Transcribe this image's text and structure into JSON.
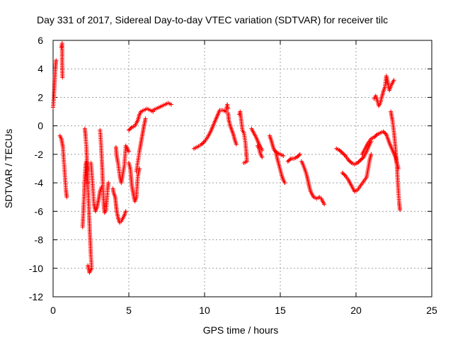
{
  "chart_data": {
    "type": "scatter",
    "title": "Day 331 of 2017, Sidereal Day-to-day VTEC variation (SDTVAR) for receiver tilc",
    "xlabel": "GPS time / hours",
    "ylabel": "SDTVAR / TECUs",
    "xlim": [
      0,
      25
    ],
    "ylim": [
      -12,
      6
    ],
    "xticks": [
      0,
      5,
      10,
      15,
      20,
      25
    ],
    "yticks": [
      -12,
      -10,
      -8,
      -6,
      -4,
      -2,
      0,
      2,
      4,
      6
    ],
    "grid": true,
    "marker": "+",
    "color": "#ff0000",
    "segments": [
      [
        [
          0.0,
          1.3
        ],
        [
          0.05,
          2.0
        ],
        [
          0.1,
          3.0
        ],
        [
          0.15,
          4.0
        ],
        [
          0.2,
          4.6
        ]
      ],
      [
        [
          0.55,
          5.5
        ],
        [
          0.6,
          5.8
        ],
        [
          0.6,
          4.4
        ],
        [
          0.62,
          3.4
        ]
      ],
      [
        [
          0.45,
          -0.7
        ],
        [
          0.55,
          -0.9
        ],
        [
          0.65,
          -1.5
        ],
        [
          0.7,
          -2.3
        ],
        [
          0.75,
          -3.0
        ],
        [
          0.8,
          -3.8
        ],
        [
          0.85,
          -4.5
        ],
        [
          0.9,
          -5.0
        ]
      ],
      [
        [
          1.95,
          -7.1
        ],
        [
          2.0,
          -6.0
        ],
        [
          2.05,
          -4.8
        ],
        [
          2.1,
          -3.5
        ],
        [
          2.15,
          -2.7
        ],
        [
          2.2,
          -2.5
        ],
        [
          2.25,
          -3.2
        ],
        [
          2.3,
          -4.0
        ]
      ],
      [
        [
          2.1,
          -0.2
        ],
        [
          2.15,
          -0.8
        ],
        [
          2.2,
          -1.5
        ],
        [
          2.25,
          -2.8
        ],
        [
          2.3,
          -4.3
        ],
        [
          2.35,
          -5.5
        ],
        [
          2.4,
          -6.8
        ],
        [
          2.45,
          -8.0
        ],
        [
          2.5,
          -9.2
        ],
        [
          2.55,
          -10.0
        ],
        [
          2.4,
          -10.3
        ],
        [
          2.3,
          -9.8
        ]
      ],
      [
        [
          2.5,
          -2.6
        ],
        [
          2.55,
          -3.2
        ],
        [
          2.6,
          -4.0
        ],
        [
          2.65,
          -4.8
        ],
        [
          2.7,
          -5.5
        ],
        [
          2.8,
          -6.0
        ],
        [
          2.9,
          -5.7
        ],
        [
          3.0,
          -5.2
        ],
        [
          3.1,
          -4.6
        ],
        [
          3.2,
          -4.3
        ]
      ],
      [
        [
          3.1,
          -0.3
        ],
        [
          3.15,
          -1.0
        ],
        [
          3.2,
          -2.0
        ],
        [
          3.25,
          -3.2
        ],
        [
          3.3,
          -4.5
        ],
        [
          3.35,
          -5.6
        ],
        [
          3.4,
          -6.1
        ],
        [
          3.5,
          -5.9
        ],
        [
          3.55,
          -5.2
        ],
        [
          3.6,
          -4.5
        ],
        [
          3.65,
          -4.0
        ]
      ],
      [
        [
          3.95,
          -4.4
        ],
        [
          4.0,
          -4.7
        ],
        [
          4.1,
          -5.0
        ],
        [
          4.15,
          -5.5
        ],
        [
          4.2,
          -6.0
        ],
        [
          4.3,
          -6.5
        ],
        [
          4.4,
          -6.8
        ],
        [
          4.5,
          -6.7
        ],
        [
          4.6,
          -6.5
        ],
        [
          4.7,
          -6.3
        ],
        [
          4.8,
          -6.0
        ]
      ],
      [
        [
          4.15,
          -1.5
        ],
        [
          4.2,
          -2.1
        ],
        [
          4.3,
          -2.7
        ],
        [
          4.4,
          -3.5
        ],
        [
          4.5,
          -4.0
        ],
        [
          4.6,
          -3.4
        ],
        [
          4.7,
          -2.8
        ],
        [
          4.75,
          -2.1
        ],
        [
          4.8,
          -1.4
        ],
        [
          4.9,
          -1.6
        ],
        [
          5.0,
          -1.8
        ]
      ],
      [
        [
          5.0,
          -2.6
        ],
        [
          5.1,
          -3.0
        ],
        [
          5.15,
          -3.6
        ],
        [
          5.2,
          -4.2
        ],
        [
          5.3,
          -4.8
        ],
        [
          5.4,
          -5.3
        ],
        [
          5.5,
          -5.0
        ],
        [
          5.55,
          -4.2
        ],
        [
          5.6,
          -3.5
        ],
        [
          5.7,
          -3.0
        ]
      ],
      [
        [
          5.0,
          -0.3
        ],
        [
          5.2,
          -0.1
        ],
        [
          5.4,
          0.0
        ],
        [
          5.5,
          0.2
        ],
        [
          5.6,
          0.4
        ],
        [
          5.7,
          0.8
        ],
        [
          5.8,
          1.0
        ],
        [
          6.0,
          1.1
        ],
        [
          6.2,
          1.2
        ],
        [
          6.4,
          1.1
        ],
        [
          6.6,
          1.0
        ]
      ],
      [
        [
          5.5,
          -3.2
        ],
        [
          5.6,
          -2.5
        ],
        [
          5.7,
          -1.8
        ],
        [
          5.8,
          -1.2
        ],
        [
          5.9,
          -0.6
        ],
        [
          6.0,
          0.0
        ],
        [
          6.1,
          0.5
        ]
      ],
      [
        [
          6.6,
          1.1
        ],
        [
          6.8,
          1.2
        ],
        [
          7.0,
          1.3
        ],
        [
          7.2,
          1.4
        ],
        [
          7.4,
          1.5
        ],
        [
          7.6,
          1.6
        ],
        [
          7.8,
          1.5
        ]
      ],
      [
        [
          9.3,
          -1.6
        ],
        [
          9.5,
          -1.5
        ],
        [
          9.8,
          -1.3
        ],
        [
          10.0,
          -1.1
        ],
        [
          10.2,
          -0.8
        ],
        [
          10.4,
          -0.4
        ],
        [
          10.6,
          0.1
        ],
        [
          10.8,
          0.6
        ],
        [
          11.0,
          1.1
        ],
        [
          11.2,
          1.1
        ],
        [
          11.4,
          1.0
        ],
        [
          11.5,
          1.5
        ],
        [
          11.55,
          1.2
        ]
      ],
      [
        [
          11.55,
          0.9
        ],
        [
          11.6,
          0.4
        ],
        [
          11.7,
          0.0
        ],
        [
          11.8,
          -0.3
        ],
        [
          11.9,
          -0.6
        ],
        [
          12.0,
          -1.0
        ],
        [
          12.1,
          -1.3
        ]
      ],
      [
        [
          12.3,
          0.8
        ],
        [
          12.35,
          1.0
        ],
        [
          12.5,
          -0.3
        ],
        [
          12.6,
          -0.5
        ],
        [
          12.7,
          -1.2
        ],
        [
          12.8,
          -2.5
        ],
        [
          12.6,
          -2.6
        ]
      ],
      [
        [
          13.1,
          -0.2
        ],
        [
          13.2,
          -0.4
        ],
        [
          13.4,
          -0.8
        ],
        [
          13.6,
          -1.3
        ],
        [
          13.8,
          -1.7
        ]
      ],
      [
        [
          13.5,
          -1.4
        ],
        [
          13.6,
          -1.6
        ],
        [
          13.7,
          -2.0
        ],
        [
          13.8,
          -2.2
        ]
      ],
      [
        [
          14.3,
          -0.7
        ],
        [
          14.4,
          -1.0
        ],
        [
          14.5,
          -1.4
        ],
        [
          14.6,
          -1.7
        ],
        [
          14.8,
          -1.9
        ],
        [
          15.0,
          -2.0
        ],
        [
          15.2,
          -2.1
        ]
      ],
      [
        [
          14.7,
          -1.8
        ],
        [
          14.8,
          -2.3
        ],
        [
          14.9,
          -2.7
        ],
        [
          15.0,
          -3.1
        ],
        [
          15.1,
          -3.5
        ],
        [
          15.2,
          -3.8
        ],
        [
          15.3,
          -4.0
        ]
      ],
      [
        [
          15.5,
          -2.5
        ],
        [
          15.7,
          -2.3
        ],
        [
          15.9,
          -2.3
        ],
        [
          16.1,
          -2.2
        ],
        [
          16.3,
          -2.0
        ]
      ],
      [
        [
          16.4,
          -2.5
        ],
        [
          16.5,
          -2.7
        ],
        [
          16.6,
          -3.0
        ],
        [
          16.7,
          -3.3
        ],
        [
          16.8,
          -3.7
        ],
        [
          16.9,
          -4.2
        ],
        [
          17.0,
          -4.6
        ],
        [
          17.2,
          -5.0
        ],
        [
          17.4,
          -5.1
        ],
        [
          17.6,
          -5.0
        ],
        [
          17.7,
          -5.1
        ],
        [
          17.8,
          -5.3
        ],
        [
          17.9,
          -5.5
        ]
      ],
      [
        [
          18.7,
          -1.6
        ],
        [
          18.9,
          -1.7
        ],
        [
          19.1,
          -1.9
        ],
        [
          19.3,
          -2.1
        ],
        [
          19.5,
          -2.4
        ],
        [
          19.7,
          -2.6
        ],
        [
          19.9,
          -2.7
        ],
        [
          20.1,
          -2.6
        ],
        [
          20.3,
          -2.4
        ],
        [
          20.5,
          -2.2
        ],
        [
          20.7,
          -1.8
        ],
        [
          20.9,
          -1.3
        ],
        [
          21.0,
          -1.1
        ]
      ],
      [
        [
          19.1,
          -3.3
        ],
        [
          19.3,
          -3.5
        ],
        [
          19.5,
          -3.8
        ],
        [
          19.7,
          -4.2
        ],
        [
          19.9,
          -4.6
        ],
        [
          20.1,
          -4.5
        ],
        [
          20.3,
          -4.2
        ],
        [
          20.5,
          -3.9
        ],
        [
          20.7,
          -3.6
        ],
        [
          20.8,
          -3.0
        ],
        [
          20.9,
          -2.4
        ],
        [
          21.0,
          -2.0
        ]
      ],
      [
        [
          20.4,
          -2.0
        ],
        [
          20.6,
          -1.6
        ],
        [
          20.8,
          -1.2
        ],
        [
          21.0,
          -0.9
        ],
        [
          21.2,
          -0.8
        ],
        [
          21.4,
          -0.6
        ],
        [
          21.6,
          -0.5
        ],
        [
          21.8,
          -0.4
        ],
        [
          22.0,
          -0.6
        ],
        [
          22.2,
          -1.2
        ],
        [
          22.4,
          -1.7
        ],
        [
          22.6,
          -2.2
        ],
        [
          22.8,
          -3.0
        ]
      ],
      [
        [
          21.2,
          1.9
        ],
        [
          21.3,
          2.1
        ],
        [
          21.4,
          1.8
        ],
        [
          21.5,
          1.4
        ],
        [
          21.6,
          1.6
        ],
        [
          21.7,
          2.0
        ],
        [
          21.8,
          2.4
        ],
        [
          21.9,
          2.7
        ],
        [
          22.0,
          3.5
        ],
        [
          22.1,
          3.0
        ],
        [
          22.2,
          2.5
        ],
        [
          22.3,
          2.8
        ],
        [
          22.4,
          3.0
        ],
        [
          22.5,
          3.2
        ]
      ],
      [
        [
          22.3,
          1.0
        ],
        [
          22.4,
          0.4
        ],
        [
          22.5,
          -0.4
        ],
        [
          22.6,
          -1.5
        ],
        [
          22.7,
          -2.8
        ],
        [
          22.75,
          -3.8
        ],
        [
          22.8,
          -4.7
        ],
        [
          22.85,
          -5.4
        ],
        [
          22.9,
          -5.9
        ]
      ]
    ]
  }
}
